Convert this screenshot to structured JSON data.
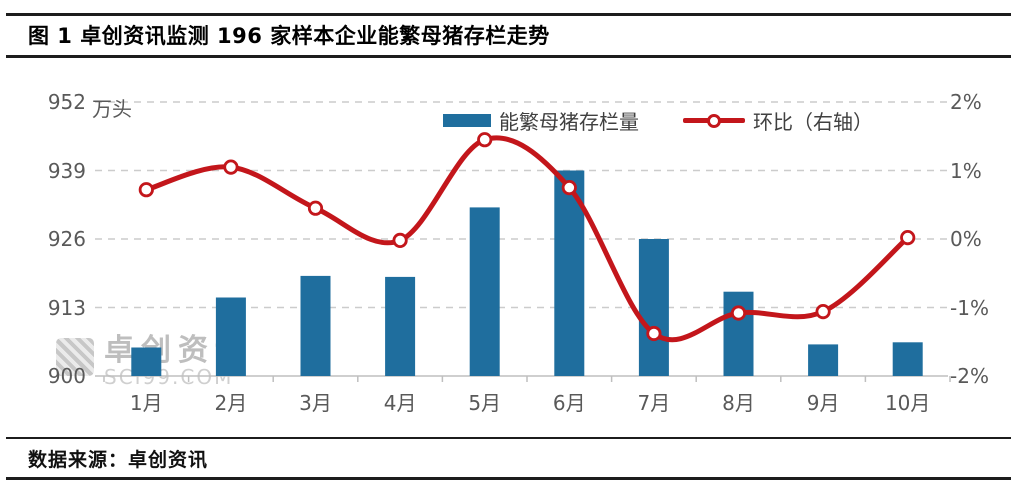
{
  "page": {
    "title": "图 1 卓创资讯监测 196 家样本企业能繁母猪存栏走势",
    "source": "数据来源：卓创资讯",
    "watermark": {
      "name": "卓创资讯",
      "domain": "SCI99.COM"
    }
  },
  "chart_data": {
    "type": "bar",
    "subtype": "combo-bar-line-dual-axis",
    "categories": [
      "1月",
      "2月",
      "3月",
      "4月",
      "5月",
      "6月",
      "7月",
      "8月",
      "9月",
      "10月"
    ],
    "series": [
      {
        "name": "能繁母猪存栏量",
        "type": "bar",
        "axis": "left",
        "color": "#1F6E9E",
        "values": [
          905.4,
          914.9,
          919.0,
          918.8,
          932.0,
          939.0,
          926.0,
          916.0,
          906.0,
          906.4
        ]
      },
      {
        "name": "环比（右轴）",
        "type": "line",
        "axis": "right",
        "color": "#C3161B",
        "marker": "open-circle",
        "values": [
          0.72,
          1.05,
          0.45,
          -0.02,
          1.45,
          0.75,
          -1.38,
          -1.08,
          -1.06,
          0.02
        ]
      }
    ],
    "left_axis": {
      "unit": "万头",
      "min": 900,
      "max": 952,
      "ticks": [
        952,
        939,
        926,
        913,
        900
      ]
    },
    "right_axis": {
      "min": -2,
      "max": 2,
      "ticks": [
        "2%",
        "1%",
        "0%",
        "-1%",
        "-2%"
      ]
    },
    "grid": "horizontal-dashed",
    "legend_position": "top-inside",
    "gridline_color": "#cccccc",
    "axis_line_color": "#bfbfbf",
    "tick_label_color": "#595959"
  }
}
